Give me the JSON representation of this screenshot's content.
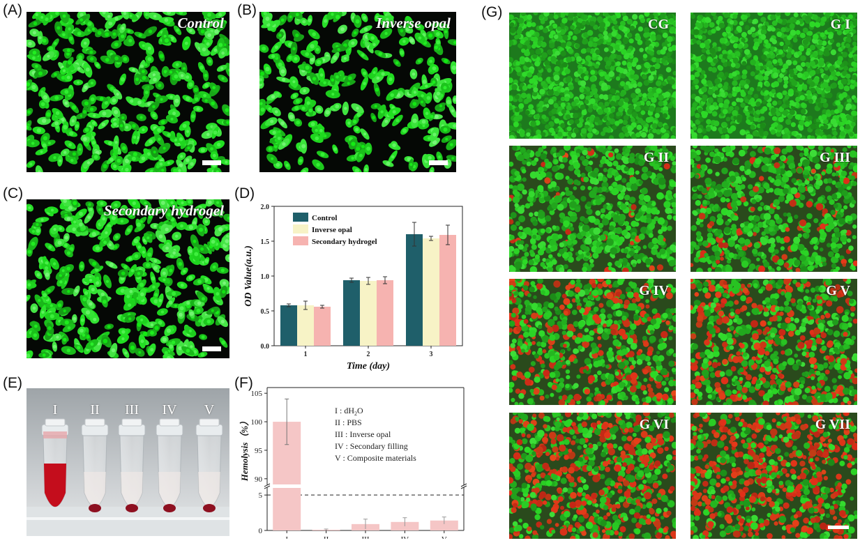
{
  "panels": {
    "A": {
      "label": "(A)",
      "title": "Control"
    },
    "B": {
      "label": "(B)",
      "title": "Inverse opal"
    },
    "C": {
      "label": "(C)",
      "title": "Secondary hydrogel"
    },
    "D": {
      "label": "(D)"
    },
    "E": {
      "label": "(E)",
      "tubes": [
        "I",
        "II",
        "III",
        "IV",
        "V"
      ]
    },
    "F": {
      "label": "(F)"
    },
    "G": {
      "label": "(G)",
      "titles": [
        "CG",
        "G I",
        "G II",
        "G III",
        "G IV",
        "G V",
        "G VI",
        "G VII"
      ]
    }
  },
  "colors": {
    "control": "#1f5f6a",
    "inverse_opal": "#f7f3c6",
    "secondary_hydrogel": "#f6b3b0",
    "hemolysis_bar": "#f5c6c6",
    "live_cell": "#2fcf2f",
    "dead_cell": "#d8321e"
  },
  "chart_data": [
    {
      "type": "bar",
      "panel": "D",
      "categories": [
        "1",
        "2",
        "3"
      ],
      "series": [
        {
          "name": "Control",
          "values": [
            0.58,
            0.94,
            1.6
          ],
          "errors": [
            0.02,
            0.03,
            0.17
          ]
        },
        {
          "name": "Inverse opal",
          "values": [
            0.58,
            0.93,
            1.54
          ],
          "errors": [
            0.06,
            0.05,
            0.03
          ]
        },
        {
          "name": "Secondary hydrogel",
          "values": [
            0.56,
            0.94,
            1.59
          ],
          "errors": [
            0.02,
            0.05,
            0.14
          ]
        }
      ],
      "xlabel": "Time (day)",
      "ylabel": "OD Value(a.u.)",
      "ylim": [
        0,
        2.0
      ],
      "yticks": [
        "0.0",
        "0.5",
        "1.0",
        "1.5",
        "2.0"
      ],
      "legend": "top-left"
    },
    {
      "type": "bar",
      "panel": "F",
      "categories": [
        "I",
        "II",
        "III",
        "IV",
        "V"
      ],
      "values": [
        100,
        0.1,
        0.9,
        1.2,
        1.4
      ],
      "errors": [
        4,
        0.1,
        0.7,
        0.6,
        0.5
      ],
      "ylabel": "Hemolysis（%）",
      "axis_break": {
        "lower": [
          0,
          6
        ],
        "upper": [
          89,
          106
        ]
      },
      "yticks_lower": [
        "0",
        "5"
      ],
      "yticks_upper": [
        "90",
        "95",
        "100",
        "105"
      ],
      "threshold": 5,
      "legend_entries": [
        {
          "num": "I",
          "text": ": dH",
          "sub": "2",
          "tail": "O"
        },
        {
          "num": "II",
          "text": ": PBS"
        },
        {
          "num": "III",
          "text": ": Inverse opal"
        },
        {
          "num": "IV",
          "text": ": Secondary filling"
        },
        {
          "num": "V",
          "text": ": Composite materials"
        }
      ]
    }
  ]
}
